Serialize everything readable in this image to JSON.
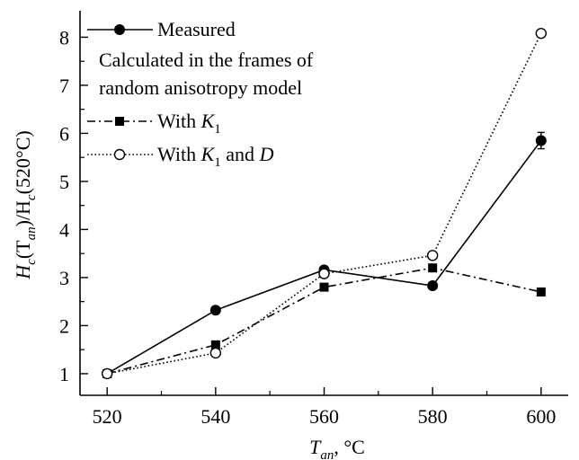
{
  "chart_data": {
    "type": "line",
    "x": [
      520,
      540,
      560,
      580,
      600
    ],
    "xlim": [
      515,
      605
    ],
    "ylim": [
      0.55,
      8.55
    ],
    "xticks": [
      520,
      540,
      560,
      580,
      600
    ],
    "yticks": [
      1,
      2,
      3,
      4,
      5,
      6,
      7,
      8
    ],
    "xticks_minor": [
      530,
      550,
      570,
      590
    ],
    "yticks_minor": [
      1.5,
      2.5,
      3.5,
      4.5,
      5.5,
      6.5,
      7.5
    ],
    "grid": false,
    "xlabel": {
      "main": "T",
      "sub": "an",
      "rest": ", °C"
    },
    "ylabel": {
      "p1": "H",
      "s1": "c",
      "p2": "(T",
      "s2": "an",
      "p3": ")/H",
      "s3": "c",
      "p4": "(520°C)"
    },
    "series": [
      {
        "name": "Measured",
        "values": [
          1.0,
          2.32,
          3.16,
          2.83,
          5.85
        ],
        "marker": "filled-circle",
        "line": "solid",
        "error": [
          0,
          0,
          0,
          0,
          0.17
        ]
      },
      {
        "name": "With K1",
        "values": [
          1.0,
          1.6,
          2.8,
          3.2,
          2.7
        ],
        "marker": "filled-square",
        "line": "dashdot"
      },
      {
        "name": "With K1 and D",
        "values": [
          1.0,
          1.43,
          3.08,
          3.46,
          8.08
        ],
        "marker": "open-circle",
        "line": "dotted"
      }
    ],
    "legend": {
      "placement": "top-left",
      "measured": "Measured",
      "heading1": "Calculated in the frames of",
      "heading2": "random anisotropy model",
      "k1_prefix": "With ",
      "k1_var": "K",
      "k1_sub": "1",
      "k1d_prefix": "With ",
      "k1d_var": "K",
      "k1d_sub": "1",
      "k1d_mid": " and ",
      "k1d_d": "D"
    },
    "colors": {
      "line": "#000000",
      "background": "#ffffff"
    }
  }
}
